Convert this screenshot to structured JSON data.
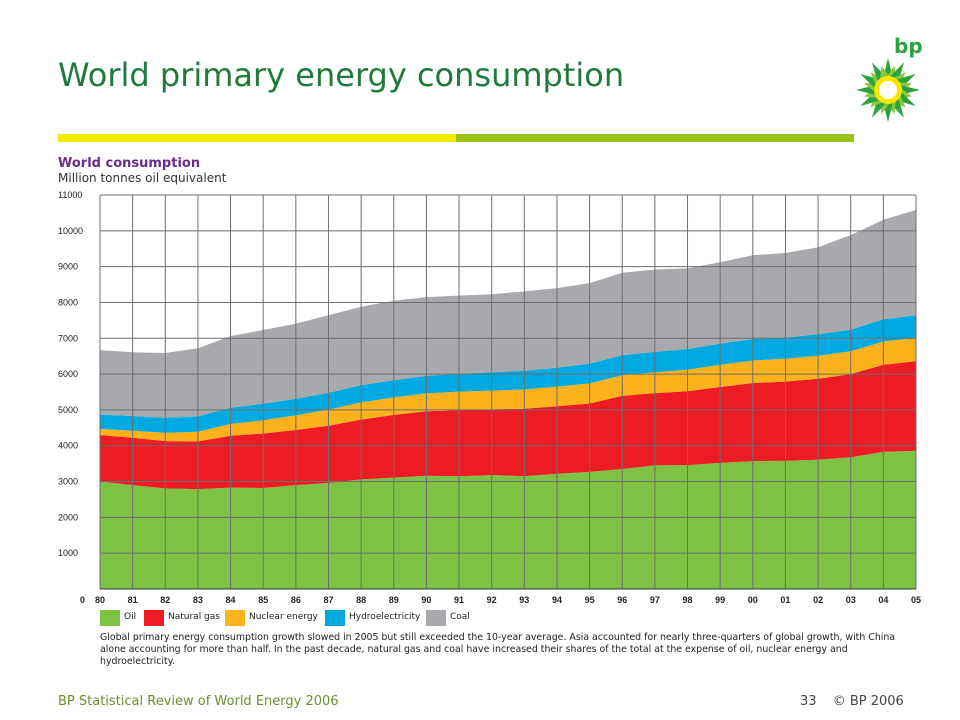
{
  "slide": {
    "title": "World primary energy consumption",
    "logo_text": "bp",
    "footer_left": "BP Statistical Review of World Energy 2006",
    "page_number": "33",
    "copyright": "© BP 2006",
    "caption": "Global primary energy consumption growth slowed in 2005 but still exceeded the 10-year average. Asia accounted for nearly three-quarters of global growth, with China alone accounting for more than half. In the past decade, natural gas and coal have increased their shares of the total at the expense of oil, nuclear energy and hydroelectricity.",
    "colors": {
      "title": "#1f7a3c",
      "rule_yellow": "#f2ea00",
      "rule_green": "#9cc21a",
      "chart_title": "#6b2b86"
    }
  },
  "chart_data": {
    "type": "area",
    "stacked": true,
    "title": "World consumption",
    "subtitle": "Million tonnes oil equivalent",
    "x": [
      "80",
      "81",
      "82",
      "83",
      "84",
      "85",
      "86",
      "87",
      "88",
      "89",
      "90",
      "91",
      "92",
      "93",
      "94",
      "95",
      "96",
      "97",
      "98",
      "99",
      "00",
      "01",
      "02",
      "03",
      "04",
      "05"
    ],
    "ylim": [
      0,
      11000
    ],
    "yticks": [
      0,
      1000,
      2000,
      3000,
      4000,
      5000,
      6000,
      7000,
      8000,
      9000,
      10000,
      11000
    ],
    "grid": true,
    "legend_position": "bottom",
    "series": [
      {
        "name": "Oil",
        "color": "#7dc242",
        "values": [
          3000,
          2900,
          2810,
          2790,
          2830,
          2820,
          2900,
          2960,
          3060,
          3110,
          3160,
          3150,
          3180,
          3150,
          3220,
          3270,
          3350,
          3450,
          3460,
          3520,
          3570,
          3580,
          3610,
          3680,
          3830,
          3860
        ]
      },
      {
        "name": "Natural gas",
        "color": "#ed1c24",
        "values": [
          1300,
          1320,
          1320,
          1330,
          1450,
          1520,
          1540,
          1600,
          1670,
          1750,
          1800,
          1840,
          1840,
          1880,
          1880,
          1910,
          2040,
          2020,
          2060,
          2120,
          2180,
          2210,
          2260,
          2320,
          2430,
          2500
        ]
      },
      {
        "name": "Nuclear energy",
        "color": "#fbb21d",
        "values": [
          170,
          200,
          230,
          270,
          330,
          370,
          410,
          450,
          480,
          490,
          500,
          520,
          520,
          540,
          550,
          560,
          580,
          580,
          600,
          620,
          630,
          640,
          640,
          640,
          650,
          650
        ]
      },
      {
        "name": "Hydroelectricity",
        "color": "#00a9df",
        "values": [
          400,
          410,
          420,
          430,
          450,
          460,
          460,
          470,
          480,
          480,
          490,
          500,
          510,
          520,
          530,
          550,
          560,
          570,
          580,
          590,
          600,
          590,
          600,
          600,
          620,
          630
        ]
      },
      {
        "name": "Coal",
        "color": "#a7a9ac",
        "values": [
          1800,
          1780,
          1810,
          1900,
          2000,
          2060,
          2100,
          2160,
          2190,
          2220,
          2200,
          2180,
          2180,
          2220,
          2220,
          2250,
          2300,
          2300,
          2250,
          2270,
          2340,
          2360,
          2430,
          2640,
          2780,
          2940
        ]
      }
    ]
  }
}
